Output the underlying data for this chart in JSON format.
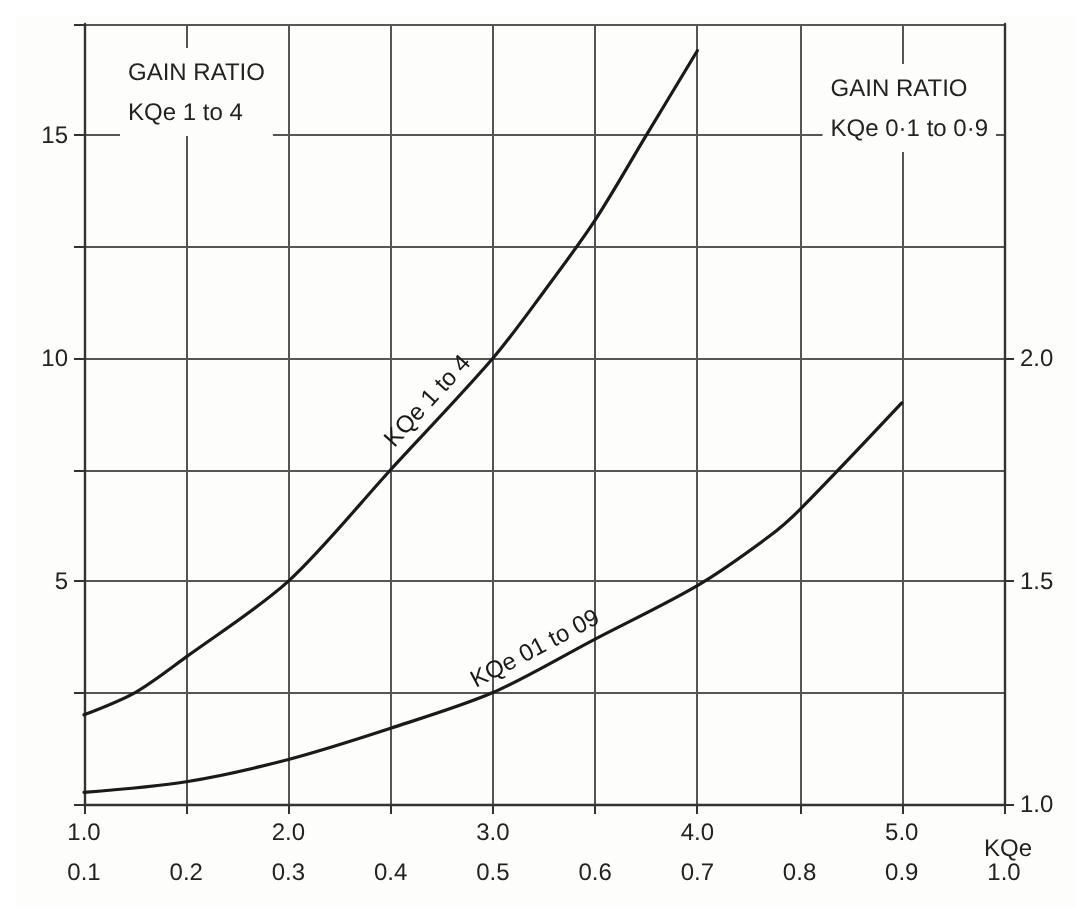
{
  "chart_data": [
    {
      "type": "line",
      "ylabel": "GAIN RATIO\nKQe 1 to 4",
      "series": [
        {
          "name": "KQe 1 to 4",
          "color": "#1a1a1a",
          "x": [
            1.0,
            1.25,
            1.5,
            2.0,
            2.5,
            3.0,
            3.25,
            3.5,
            3.75,
            4.0
          ],
          "values": [
            2.0,
            2.5,
            3.3,
            5.0,
            7.5,
            10.0,
            11.5,
            13.1,
            15.0,
            16.9
          ]
        }
      ],
      "xlim": [
        1.0,
        5.5
      ],
      "xticks": [
        {
          "value": 1.0,
          "label": "1.0"
        },
        {
          "value": 1.5,
          "label": null
        },
        {
          "value": 2.0,
          "label": "2.0"
        },
        {
          "value": 2.5,
          "label": null
        },
        {
          "value": 3.0,
          "label": "3.0"
        },
        {
          "value": 3.5,
          "label": null
        },
        {
          "value": 4.0,
          "label": "4.0"
        },
        {
          "value": 4.5,
          "label": null
        },
        {
          "value": 5.0,
          "label": "5.0"
        },
        {
          "value": 5.5,
          "label": null
        }
      ],
      "ylim": [
        0,
        17.5
      ],
      "yticks": [
        {
          "value": 0,
          "label": null
        },
        {
          "value": 2.5,
          "label": null
        },
        5,
        {
          "value": 7.5,
          "label": null
        },
        10,
        {
          "value": 12.5,
          "label": null
        },
        15,
        {
          "value": 17.5,
          "label": null
        }
      ],
      "grid": true,
      "marker": "none",
      "line_style": "solid"
    },
    {
      "type": "line",
      "y2label": "GAIN RATIO\nKQe 0·1 to 0·9",
      "xlabel": "KQe",
      "series": [
        {
          "name": "KQe 01 to 09",
          "color": "#1a1a1a",
          "axis": "y2",
          "x": [
            0.1,
            0.2,
            0.3,
            0.4,
            0.5,
            0.6,
            0.7,
            0.77,
            0.8,
            0.9
          ],
          "values": [
            1.026,
            1.05,
            1.1,
            1.17,
            1.25,
            1.37,
            1.49,
            1.6,
            1.66,
            1.9
          ]
        }
      ],
      "xlim": [
        0.1,
        1.0
      ],
      "xticks": [
        {
          "value": 0.1,
          "label": "0.1"
        },
        {
          "value": 0.2,
          "label": "0.2"
        },
        {
          "value": 0.3,
          "label": "0.3"
        },
        {
          "value": 0.4,
          "label": "0.4"
        },
        {
          "value": 0.5,
          "label": "0.5"
        },
        {
          "value": 0.6,
          "label": "0.6"
        },
        {
          "value": 0.7,
          "label": "0.7"
        },
        {
          "value": 0.8,
          "label": "0.8"
        },
        {
          "value": 0.9,
          "label": "0.9"
        },
        {
          "value": 1.0,
          "label": "1.0"
        }
      ],
      "y2lim": [
        1.0,
        2.75
      ],
      "y2ticks": [
        {
          "value": 1.0,
          "label": "1.0"
        },
        {
          "value": 1.5,
          "label": "1.5"
        },
        {
          "value": 2.0,
          "label": "2.0"
        }
      ],
      "marker": "none",
      "line_style": "solid"
    }
  ]
}
